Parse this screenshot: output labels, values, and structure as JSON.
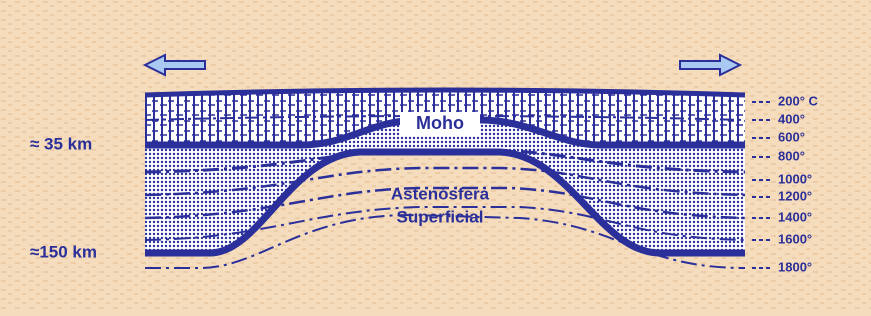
{
  "depth_labels": [
    "≈ 35 km",
    "≈150 km"
  ],
  "moho": "Moho",
  "asthenosphere": [
    "Astenósfera",
    "Superficial"
  ],
  "isotherms": [
    "200° C",
    "400°",
    "600°",
    "800°",
    "1000°",
    "1200°",
    "1400°",
    "1600°",
    "1800°"
  ]
}
